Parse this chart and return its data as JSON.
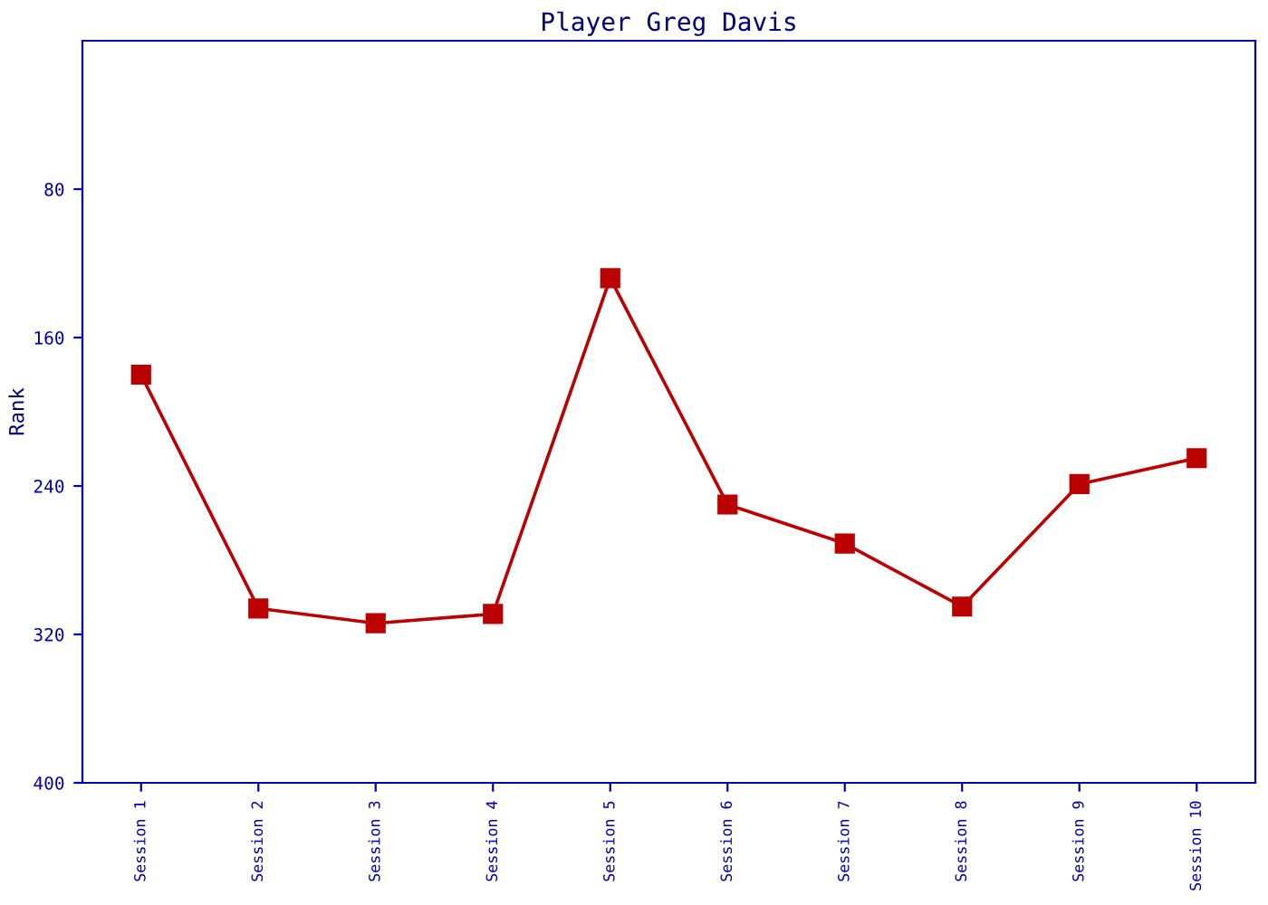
{
  "chart_data": {
    "type": "line",
    "title": "Player Greg Davis",
    "ylabel": "Rank",
    "categories": [
      "Session 1",
      "Session 2",
      "Session 3",
      "Session 4",
      "Session 5",
      "Session 6",
      "Session 7",
      "Session 8",
      "Session 9",
      "Session 10"
    ],
    "series": [
      {
        "color": "#bb0000",
        "values": [
          180,
          306,
          314,
          309,
          128,
          250,
          271,
          305,
          239,
          225
        ]
      }
    ],
    "ylim": [
      400,
      0
    ],
    "yticks": [
      80,
      160,
      240,
      320,
      400
    ],
    "marker": "square",
    "line_style": "solid",
    "grid": false,
    "legend": false
  }
}
